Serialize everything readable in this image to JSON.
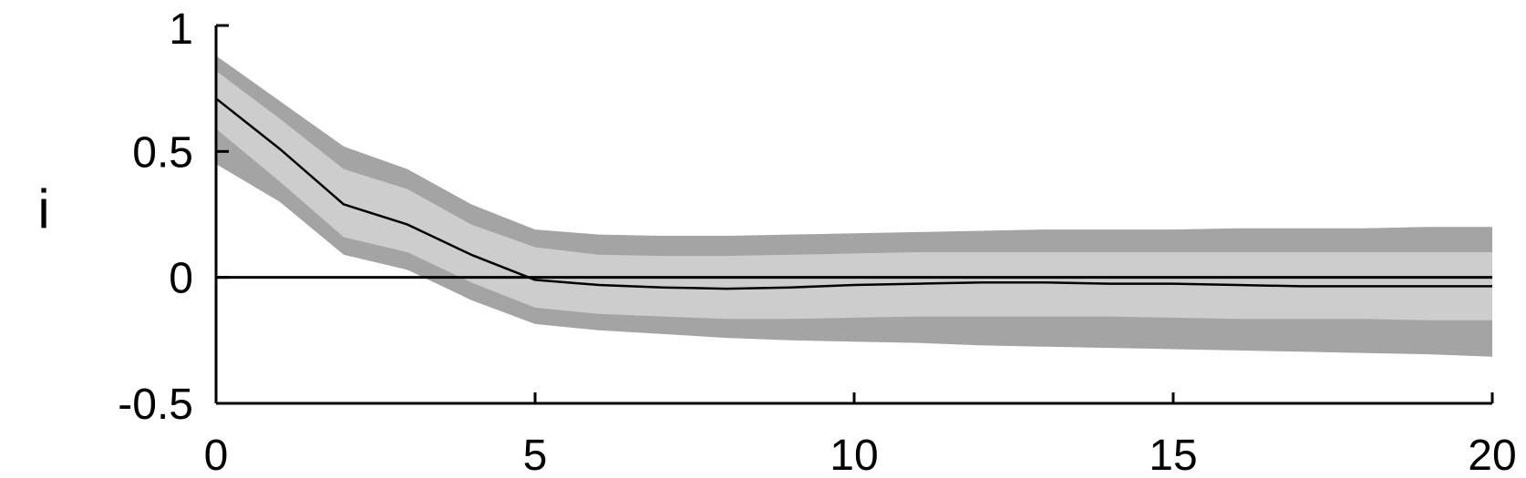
{
  "chart_data": {
    "type": "area",
    "title": "",
    "xlabel": "",
    "ylabel": "i",
    "xlim": [
      0,
      20
    ],
    "ylim": [
      -0.5,
      1
    ],
    "x_ticks": [
      0,
      5,
      10,
      15,
      20
    ],
    "x_tick_labels": [
      "0",
      "5",
      "10",
      "15",
      "20"
    ],
    "y_ticks": [
      -0.5,
      0,
      0.5,
      1
    ],
    "y_tick_labels": [
      "-0.5",
      "0",
      "0.5",
      "1"
    ],
    "grid": false,
    "x": [
      0,
      1,
      2,
      3,
      4,
      5,
      6,
      7,
      8,
      9,
      10,
      11,
      12,
      13,
      14,
      15,
      16,
      17,
      18,
      19,
      20
    ],
    "series": [
      {
        "name": "median",
        "values": [
          0.71,
          0.51,
          0.29,
          0.21,
          0.09,
          -0.01,
          -0.03,
          -0.04,
          -0.045,
          -0.04,
          -0.03,
          -0.025,
          -0.02,
          -0.02,
          -0.025,
          -0.025,
          -0.03,
          -0.035,
          -0.035,
          -0.035,
          -0.035
        ]
      },
      {
        "name": "outer_band_upper",
        "values": [
          0.88,
          0.7,
          0.52,
          0.43,
          0.29,
          0.19,
          0.17,
          0.165,
          0.165,
          0.17,
          0.175,
          0.18,
          0.185,
          0.19,
          0.19,
          0.19,
          0.195,
          0.195,
          0.195,
          0.2,
          0.2
        ]
      },
      {
        "name": "inner_band_upper",
        "values": [
          0.82,
          0.63,
          0.43,
          0.35,
          0.21,
          0.12,
          0.09,
          0.085,
          0.085,
          0.09,
          0.095,
          0.1,
          0.1,
          0.1,
          0.1,
          0.1,
          0.1,
          0.1,
          0.1,
          0.1,
          0.1
        ]
      },
      {
        "name": "inner_band_lower",
        "values": [
          0.59,
          0.38,
          0.16,
          0.1,
          -0.02,
          -0.12,
          -0.145,
          -0.155,
          -0.165,
          -0.165,
          -0.16,
          -0.155,
          -0.155,
          -0.155,
          -0.155,
          -0.16,
          -0.165,
          -0.165,
          -0.165,
          -0.17,
          -0.17
        ]
      },
      {
        "name": "outer_band_lower",
        "values": [
          0.45,
          0.3,
          0.09,
          0.03,
          -0.09,
          -0.185,
          -0.21,
          -0.225,
          -0.24,
          -0.25,
          -0.255,
          -0.26,
          -0.27,
          -0.275,
          -0.28,
          -0.285,
          -0.29,
          -0.295,
          -0.3,
          -0.305,
          -0.315
        ]
      }
    ],
    "colors": {
      "outer_band": "#a4a4a4",
      "inner_band": "#cdcdcd",
      "line": "#000000",
      "axis": "#000000"
    }
  }
}
